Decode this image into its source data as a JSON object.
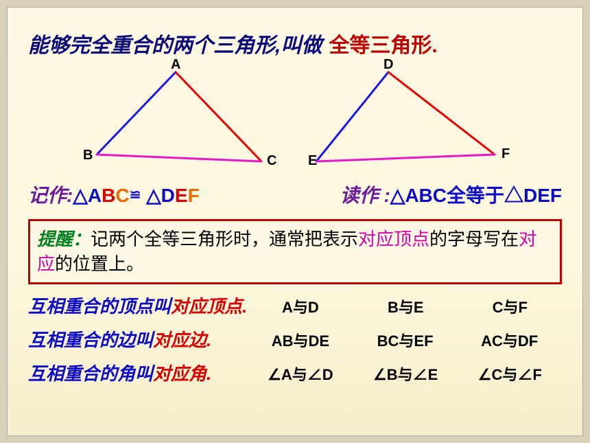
{
  "title": {
    "main": "能够完全重合的两个三角形,叫做",
    "answer": "全等三角形."
  },
  "triangles": {
    "left": {
      "labels": {
        "A": "A",
        "B": "B",
        "C": "C"
      },
      "points": {
        "A": [
          215,
          10
        ],
        "B": [
          100,
          130
        ],
        "C": [
          340,
          140
        ]
      },
      "colors": {
        "AB": "#1818e8",
        "AC": "#e80000",
        "BC": "#e818c8"
      },
      "stroke_width": 3,
      "label_pos": {
        "A": [
          208,
          -12
        ],
        "B": [
          80,
          120
        ],
        "C": [
          348,
          128
        ]
      }
    },
    "right": {
      "labels": {
        "D": "D",
        "E": "E",
        "F": "F"
      },
      "points": {
        "D": [
          525,
          10
        ],
        "E": [
          420,
          140
        ],
        "F": [
          680,
          130
        ]
      },
      "colors": {
        "DE": "#1818e8",
        "DF": "#e80000",
        "EF": "#e818c8"
      },
      "stroke_width": 3,
      "label_pos": {
        "D": [
          518,
          -12
        ],
        "E": [
          408,
          128
        ],
        "F": [
          690,
          118
        ]
      }
    }
  },
  "notation": {
    "write_prefix": "记作:",
    "write_tri1_sym": "△",
    "write_tri1_A": "A",
    "write_tri1_B": "B",
    "write_tri1_C": "C",
    "cong": "≌",
    "write_tri2_sym": "△",
    "write_tri2_D": "D",
    "write_tri2_E": "E",
    "write_tri2_F": "F",
    "read_prefix": "读作 :",
    "read_text": "△ABC全等于△DEF"
  },
  "reminder": {
    "label": "提醒：",
    "part1": "记两个全等三角形时，通常把表示",
    "hl1": "对应顶点",
    "part2": "的字母写在",
    "hl2": "对应",
    "part3": "的位置上。"
  },
  "correspondences": [
    {
      "prefix": "互相重合的顶点叫",
      "hl": "对应顶点",
      "suffix": ".",
      "items": [
        "A与D",
        "B与E",
        "C与F"
      ]
    },
    {
      "prefix": "互相重合的边叫",
      "hl": "对应边",
      "suffix": ".",
      "items": [
        "AB与DE",
        "BC与EF",
        "AC与DF"
      ]
    },
    {
      "prefix": "互相重合的角叫",
      "hl": "对应角",
      "suffix": ".",
      "items": [
        "∠A与∠D",
        "∠B与∠E",
        "∠C与∠F"
      ]
    }
  ],
  "colors": {
    "title_main": "#0a0a7a",
    "title_answer": "#c00000",
    "blue": "#0a0ac8",
    "red": "#d80000",
    "purple": "#6b1a9a",
    "orange": "#e86a00",
    "pink": "#d800a8",
    "green": "#008020",
    "reminder_border": "#c00000",
    "background": "#fdf7de"
  }
}
